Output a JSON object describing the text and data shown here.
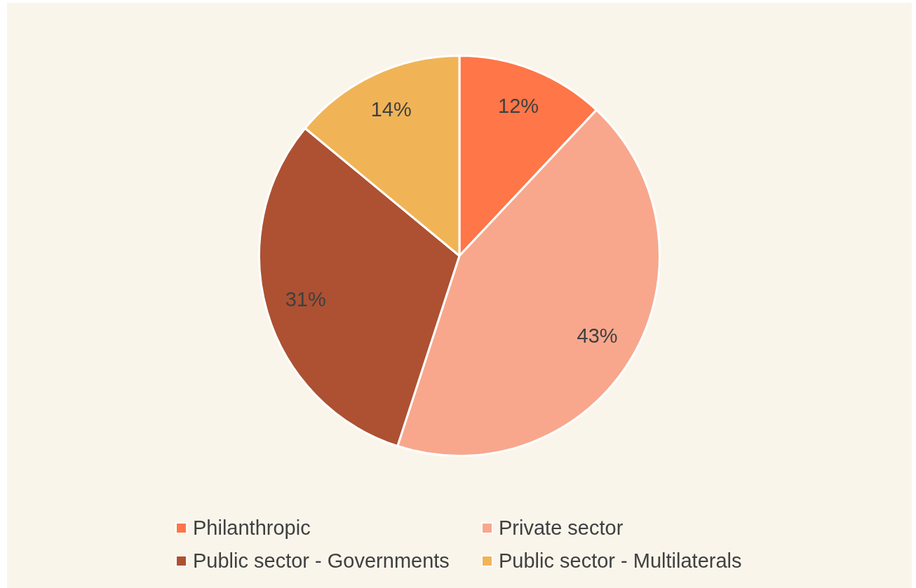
{
  "chart_data": {
    "type": "pie",
    "categories": [
      "Philanthropic",
      "Private sector",
      "Public sector - Governments",
      "Public sector - Multilaterals"
    ],
    "values": [
      12,
      43,
      31,
      14
    ],
    "colors": [
      "#ff7648",
      "#f8a78c",
      "#ad5132",
      "#f0b457"
    ],
    "value_labels": [
      "12%",
      "43%",
      "31%",
      "14%"
    ],
    "legend": "bottom"
  }
}
